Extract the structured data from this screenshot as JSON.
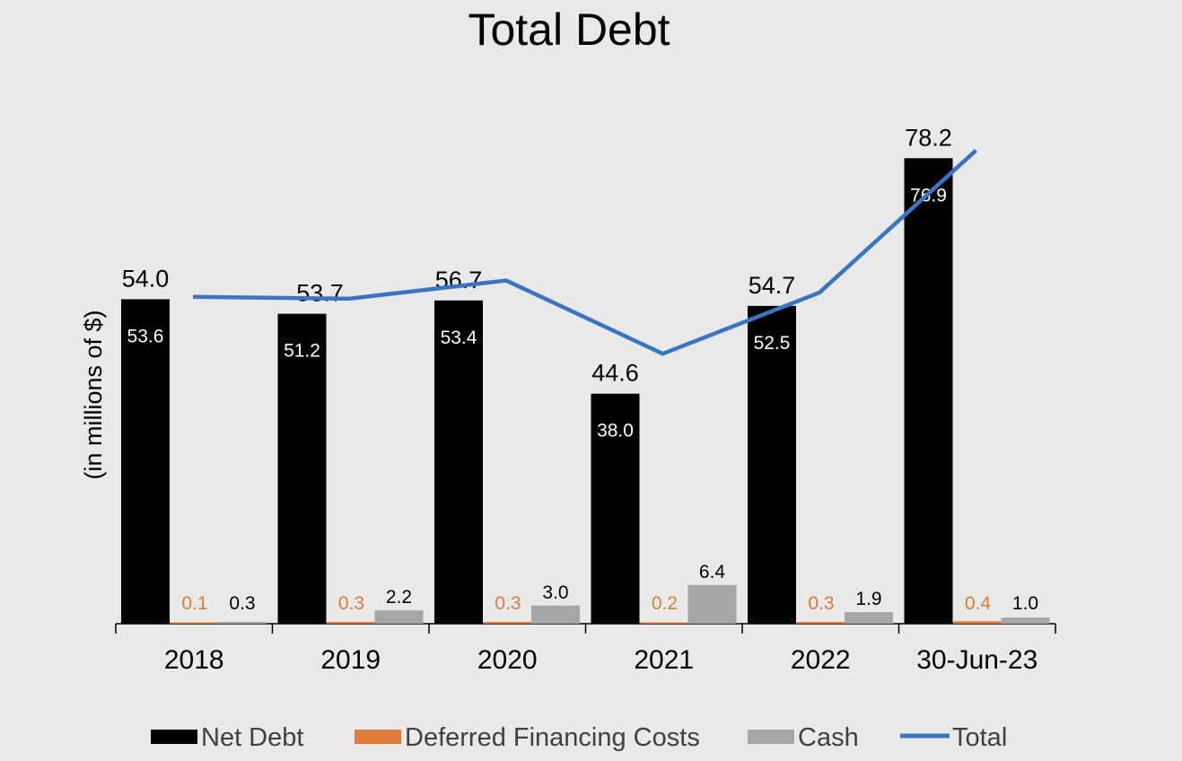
{
  "chart_data": {
    "type": "bar",
    "title": "Total Debt",
    "xlabel": "",
    "ylabel": "(in millions of $)",
    "ylim": [
      0,
      85
    ],
    "categories": [
      "2018",
      "2019",
      "2020",
      "2021",
      "2022",
      "30-Jun-23"
    ],
    "series": [
      {
        "name": "Net Debt",
        "type": "bar",
        "color": "#000000",
        "values": [
          53.6,
          51.2,
          53.4,
          38.0,
          52.5,
          76.9
        ],
        "labels": [
          "53.6",
          "51.2",
          "53.4",
          "38.0",
          "52.5",
          "76.9"
        ]
      },
      {
        "name": "Deferred Financing Costs",
        "type": "bar",
        "color": "#e07b39",
        "values": [
          0.1,
          0.3,
          0.3,
          0.2,
          0.3,
          0.4
        ],
        "labels": [
          "0.1",
          "0.3",
          "0.3",
          "0.2",
          "0.3",
          "0.4"
        ]
      },
      {
        "name": "Cash",
        "type": "bar",
        "color": "#a6a6a6",
        "values": [
          0.3,
          2.2,
          3.0,
          6.4,
          1.9,
          1.0
        ],
        "labels": [
          "0.3",
          "2.2",
          "3.0",
          "6.4",
          "1.9",
          "1.0"
        ]
      },
      {
        "name": "Total",
        "type": "line",
        "color": "#3a75c4",
        "values": [
          54.0,
          53.7,
          56.7,
          44.6,
          54.7,
          78.2
        ],
        "labels": [
          "54.0",
          "53.7",
          "56.7",
          "44.6",
          "54.7",
          "78.2"
        ]
      }
    ],
    "grid": false,
    "legend_position": "bottom"
  }
}
